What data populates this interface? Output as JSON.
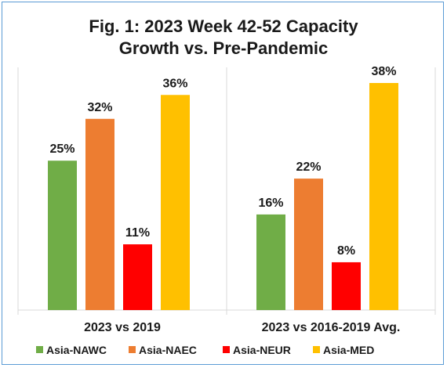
{
  "chart_data": {
    "type": "bar",
    "title": "Fig. 1: 2023 Week 42-52 Capacity Growth vs. Pre-Pandemic",
    "title_lines": [
      "Fig. 1: 2023 Week 42-52 Capacity",
      "Growth vs. Pre-Pandemic"
    ],
    "categories": [
      "2023 vs 2019",
      "2023 vs 2016-2019 Avg."
    ],
    "series": [
      {
        "name": "Asia-NAWC",
        "values": [
          25,
          16
        ],
        "labels": [
          "25%",
          "16%"
        ],
        "color": "#70ad47"
      },
      {
        "name": "Asia-NAEC",
        "values": [
          32,
          22
        ],
        "labels": [
          "32%",
          "22%"
        ],
        "color": "#ed7d31"
      },
      {
        "name": "Asia-NEUR",
        "values": [
          11,
          8
        ],
        "labels": [
          "11%",
          "8%"
        ],
        "color": "#ff0000"
      },
      {
        "name": "Asia-MED",
        "values": [
          36,
          38
        ],
        "labels": [
          "36%",
          "38%"
        ],
        "color": "#ffc000"
      }
    ],
    "ylim": [
      0,
      40
    ],
    "grid": false,
    "legend": "bottom"
  }
}
